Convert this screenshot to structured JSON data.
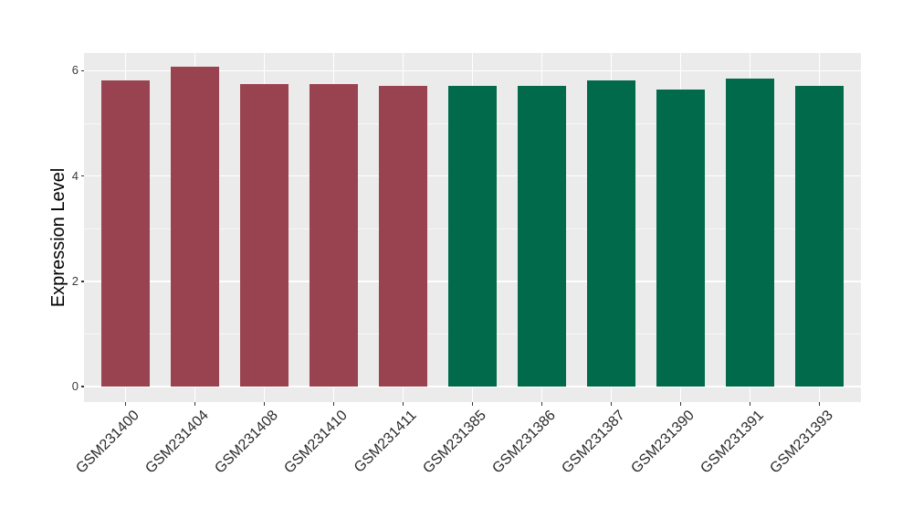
{
  "chart_data": {
    "type": "bar",
    "title": "",
    "xlabel": "",
    "ylabel": "Expression Level",
    "categories": [
      "GSM231400",
      "GSM231404",
      "GSM231408",
      "GSM231410",
      "GSM231411",
      "GSM231385",
      "GSM231386",
      "GSM231387",
      "GSM231390",
      "GSM231391",
      "GSM231393"
    ],
    "values": [
      5.81,
      6.07,
      5.74,
      5.75,
      5.71,
      5.72,
      5.72,
      5.81,
      5.64,
      5.85,
      5.71
    ],
    "bar_groups": [
      "group1",
      "group1",
      "group1",
      "group1",
      "group1",
      "group2",
      "group2",
      "group2",
      "group2",
      "group2",
      "group2"
    ],
    "group_colors": {
      "group1": "#9A4350",
      "group2": "#016A4A"
    },
    "ytick_labels": [
      "0",
      "2",
      "4",
      "6"
    ],
    "ytick_values": [
      0,
      2,
      4,
      6
    ],
    "minor_tick_values": [
      1,
      3,
      5
    ],
    "ylim": [
      -0.27,
      6.34
    ],
    "grid": "white major and minor horizontal lines, white vertical lines at bar centers, on gray panel",
    "legend_position": "none"
  },
  "style": {
    "panel_bg": "#EBEBEB",
    "grid_color": "#FFFFFF",
    "page_bg": "#FFFFFF",
    "tick_mark_color": "#343434",
    "axis_text_color": "#3A3A3A",
    "axis_title_color": "#000000"
  }
}
